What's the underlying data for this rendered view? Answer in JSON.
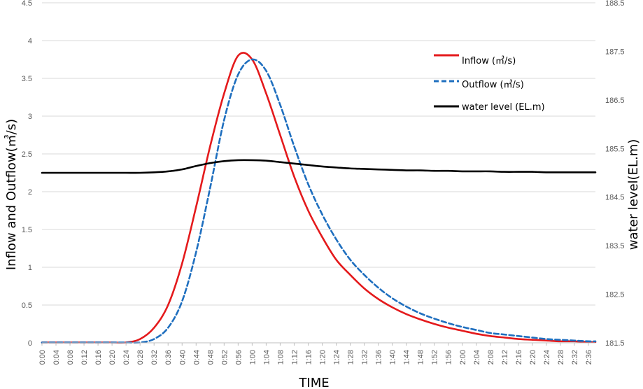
{
  "chart_data": {
    "type": "line",
    "xlabel": "TIME",
    "ylabel": "Inflow and Outflow(㎥/s)",
    "ylabel_right": "water level(EL.m)",
    "ylim": [
      0,
      4.5
    ],
    "ylim_right": [
      181.5,
      188.5
    ],
    "yticks": [
      "0",
      "0.5",
      "1",
      "1.5",
      "2",
      "2.5",
      "3",
      "3.5",
      "4",
      "4.5"
    ],
    "yticks_right": [
      "181.5",
      "182.5",
      "183.5",
      "184.5",
      "185.5",
      "186.5",
      "187.5",
      "188.5"
    ],
    "x_tick_labels": [
      "0:00",
      "0:04",
      "0:08",
      "0:12",
      "0:16",
      "0:20",
      "0:24",
      "0:28",
      "0:32",
      "0:36",
      "0:40",
      "0:44",
      "0:48",
      "0:52",
      "0:56",
      "1:00",
      "1:04",
      "1:08",
      "1:12",
      "1:16",
      "1:20",
      "1:24",
      "1:28",
      "1:32",
      "1:36",
      "1:40",
      "1:44",
      "1:48",
      "1:52",
      "1:56",
      "2:00",
      "2:04",
      "2:08",
      "2:12",
      "2:16",
      "2:20",
      "2:24",
      "2:28",
      "2:32",
      "2:36"
    ],
    "x_minutes": [
      0,
      4,
      8,
      12,
      16,
      20,
      24,
      28,
      32,
      36,
      40,
      44,
      48,
      52,
      56,
      60,
      64,
      68,
      72,
      76,
      80,
      84,
      88,
      92,
      96,
      100,
      104,
      108,
      112,
      116,
      120,
      124,
      128,
      132,
      136,
      140,
      144,
      148,
      152,
      156,
      158
    ],
    "grid": "horizontal",
    "legend_position": "top-right",
    "series": [
      {
        "name": "Inflow (㎥/s)",
        "axis": "left",
        "color": "#e41a1c",
        "dash": "solid",
        "values": [
          0,
          0,
          0,
          0,
          0,
          0,
          0,
          0.05,
          0.2,
          0.5,
          1.05,
          1.8,
          2.6,
          3.3,
          3.8,
          3.75,
          3.3,
          2.75,
          2.2,
          1.75,
          1.4,
          1.1,
          0.9,
          0.72,
          0.58,
          0.47,
          0.38,
          0.31,
          0.25,
          0.2,
          0.16,
          0.12,
          0.09,
          0.07,
          0.05,
          0.04,
          0.03,
          0.02,
          0.02,
          0.01,
          0.01
        ]
      },
      {
        "name": "Outflow (㎥/s)",
        "axis": "left",
        "color": "#1f6fbf",
        "dash": "dashed",
        "values": [
          0,
          0,
          0,
          0,
          0,
          0,
          0,
          0,
          0.05,
          0.2,
          0.55,
          1.2,
          2.05,
          2.95,
          3.55,
          3.75,
          3.6,
          3.15,
          2.6,
          2.1,
          1.7,
          1.37,
          1.1,
          0.9,
          0.73,
          0.59,
          0.48,
          0.39,
          0.32,
          0.26,
          0.21,
          0.17,
          0.13,
          0.11,
          0.09,
          0.07,
          0.05,
          0.04,
          0.03,
          0.02,
          0.02
        ]
      },
      {
        "name": "water level (EL.m)",
        "axis": "right",
        "color": "#000000",
        "dash": "solid",
        "values": [
          185.0,
          185.0,
          185.0,
          185.0,
          185.0,
          185.0,
          185.0,
          185.0,
          185.01,
          185.03,
          185.07,
          185.14,
          185.2,
          185.24,
          185.26,
          185.26,
          185.25,
          185.22,
          185.19,
          185.16,
          185.13,
          185.11,
          185.09,
          185.08,
          185.07,
          185.06,
          185.05,
          185.05,
          185.04,
          185.04,
          185.03,
          185.03,
          185.03,
          185.02,
          185.02,
          185.02,
          185.01,
          185.01,
          185.01,
          185.01,
          185.01
        ]
      }
    ]
  }
}
